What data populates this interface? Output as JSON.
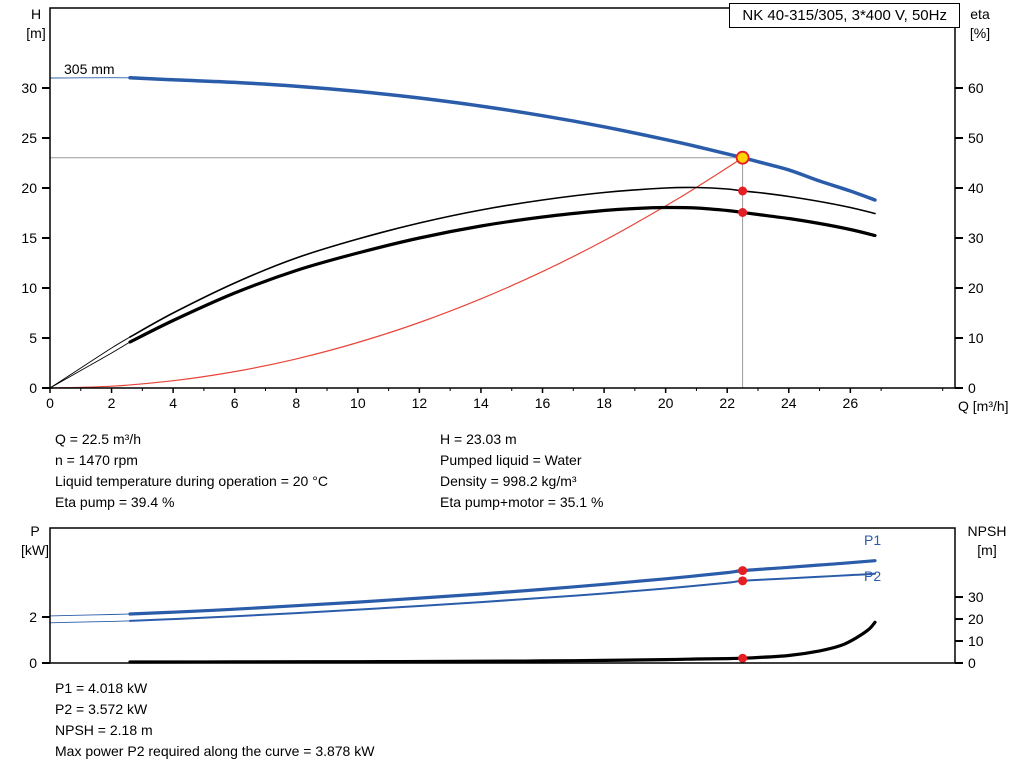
{
  "colors": {
    "curve_blue": "#2a5caa",
    "curve_red": "#e8463a",
    "marker_red": "#e31e24",
    "duty_yellow": "#ffd400",
    "guide_gray": "#9b9b9b",
    "axis_black": "#000000"
  },
  "chart_data": [
    {
      "type": "line",
      "title": "NK 40-315/305, 3*400 V, 50Hz",
      "curve_label": "305 mm",
      "x_axis": {
        "label": "Q [m³/h]",
        "ticks": [
          0,
          2,
          4,
          6,
          8,
          10,
          12,
          14,
          16,
          18,
          20,
          22,
          24,
          26
        ],
        "minor_step": 1,
        "max": 29.4
      },
      "y_left": {
        "name": "H",
        "unit": "[m]",
        "ticks": [
          0,
          5,
          10,
          15,
          20,
          25,
          30
        ],
        "max": 38
      },
      "y_right": {
        "name": "eta",
        "unit": "[%]",
        "ticks": [
          0,
          10,
          20,
          30,
          40,
          50,
          60
        ],
        "max": 76
      },
      "guides": {
        "q": 22.5,
        "v": 23.03
      },
      "series": [
        {
          "name": "system-curve",
          "axis": "left",
          "color": "#e8463a",
          "width": 1.2,
          "points": [
            [
              0,
              0
            ],
            [
              2,
              0.18
            ],
            [
              4,
              0.73
            ],
            [
              6,
              1.64
            ],
            [
              8,
              2.91
            ],
            [
              10,
              4.55
            ],
            [
              12,
              6.55
            ],
            [
              14,
              8.92
            ],
            [
              16,
              11.64
            ],
            [
              18,
              14.74
            ],
            [
              20,
              18.2
            ],
            [
              21,
              20.06
            ],
            [
              22,
              22.02
            ],
            [
              22.5,
              23.03
            ]
          ]
        },
        {
          "name": "eta-pump",
          "axis": "right",
          "color": "#000000",
          "width": 1.6,
          "thin_until": 2.6,
          "points": [
            [
              0,
              0
            ],
            [
              1,
              4
            ],
            [
              2,
              8
            ],
            [
              2.6,
              10.2
            ],
            [
              4,
              15
            ],
            [
              6,
              21
            ],
            [
              8,
              26
            ],
            [
              10,
              29.8
            ],
            [
              12,
              33
            ],
            [
              14,
              35.6
            ],
            [
              16,
              37.6
            ],
            [
              18,
              39.1
            ],
            [
              20,
              40.0
            ],
            [
              21,
              40.1
            ],
            [
              22,
              39.8
            ],
            [
              22.5,
              39.4
            ],
            [
              23,
              39.1
            ],
            [
              24,
              38.3
            ],
            [
              25,
              37.3
            ],
            [
              26,
              36.1
            ],
            [
              26.8,
              34.9
            ]
          ]
        },
        {
          "name": "eta-pump-motor",
          "axis": "right",
          "color": "#000000",
          "width": 3.2,
          "thin_until": 2.6,
          "points": [
            [
              0,
              0
            ],
            [
              1,
              3.5
            ],
            [
              2,
              7
            ],
            [
              2.6,
              9.2
            ],
            [
              4,
              13.5
            ],
            [
              6,
              19
            ],
            [
              8,
              23.5
            ],
            [
              10,
              27
            ],
            [
              12,
              30
            ],
            [
              14,
              32.4
            ],
            [
              16,
              34.2
            ],
            [
              18,
              35.5
            ],
            [
              19,
              35.9
            ],
            [
              20,
              36.1
            ],
            [
              21,
              36.0
            ],
            [
              22,
              35.5
            ],
            [
              22.5,
              35.1
            ],
            [
              23,
              34.7
            ],
            [
              24,
              33.9
            ],
            [
              25,
              32.9
            ],
            [
              26,
              31.7
            ],
            [
              26.8,
              30.5
            ]
          ]
        },
        {
          "name": "head-305mm",
          "axis": "left",
          "color": "#2a5caa",
          "width": 3.5,
          "thin_until": 2.6,
          "points": [
            [
              0,
              31.0
            ],
            [
              1,
              31.02
            ],
            [
              2,
              31.03
            ],
            [
              2.6,
              31.02
            ],
            [
              4,
              30.82
            ],
            [
              6,
              30.56
            ],
            [
              8,
              30.18
            ],
            [
              10,
              29.66
            ],
            [
              12,
              29.0
            ],
            [
              14,
              28.19
            ],
            [
              16,
              27.23
            ],
            [
              18,
              26.12
            ],
            [
              20,
              24.84
            ],
            [
              21,
              24.15
            ],
            [
              22,
              23.41
            ],
            [
              22.5,
              23.03
            ],
            [
              23,
              22.63
            ],
            [
              24,
              21.81
            ],
            [
              25,
              20.7
            ],
            [
              26,
              19.7
            ],
            [
              26.8,
              18.8
            ]
          ]
        }
      ],
      "markers": [
        {
          "q": 22.5,
          "v": 39.4,
          "axis": "right",
          "type": "dot"
        },
        {
          "q": 22.5,
          "v": 35.1,
          "axis": "right",
          "type": "dot"
        },
        {
          "q": 22.5,
          "v": 23.03,
          "axis": "left",
          "type": "duty"
        }
      ]
    },
    {
      "type": "line",
      "title": "",
      "series_labels": [
        "P1",
        "P2"
      ],
      "x_axis": {
        "label": "",
        "ticks": [],
        "minor_step": 0,
        "max": 29.4
      },
      "y_left": {
        "name": "P",
        "unit": "[kW]",
        "ticks": [
          0,
          2
        ],
        "max": 5.87
      },
      "y_right": {
        "name": "NPSH",
        "unit": "[m]",
        "ticks": [
          0,
          10,
          20,
          30
        ],
        "max": 61.4
      },
      "series": [
        {
          "name": "p1-power",
          "axis": "left",
          "color": "#2a5caa",
          "width": 3.2,
          "thin_until": 2.6,
          "points": [
            [
              0,
              2.05
            ],
            [
              1,
              2.08
            ],
            [
              2,
              2.11
            ],
            [
              2.6,
              2.13
            ],
            [
              4,
              2.21
            ],
            [
              6,
              2.34
            ],
            [
              8,
              2.49
            ],
            [
              10,
              2.65
            ],
            [
              12,
              2.82
            ],
            [
              14,
              3.0
            ],
            [
              16,
              3.2
            ],
            [
              18,
              3.42
            ],
            [
              20,
              3.66
            ],
            [
              22,
              3.93
            ],
            [
              22.5,
              4.018
            ],
            [
              24,
              4.16
            ],
            [
              25,
              4.26
            ],
            [
              26,
              4.36
            ],
            [
              26.8,
              4.45
            ]
          ]
        },
        {
          "name": "p2-power",
          "axis": "left",
          "color": "#2a5caa",
          "width": 2.0,
          "thin_until": 2.6,
          "points": [
            [
              0,
              1.75
            ],
            [
              1,
              1.78
            ],
            [
              2,
              1.81
            ],
            [
              2.6,
              1.83
            ],
            [
              4,
              1.91
            ],
            [
              6,
              2.03
            ],
            [
              8,
              2.17
            ],
            [
              10,
              2.32
            ],
            [
              12,
              2.48
            ],
            [
              14,
              2.65
            ],
            [
              16,
              2.83
            ],
            [
              18,
              3.02
            ],
            [
              20,
              3.24
            ],
            [
              22,
              3.49
            ],
            [
              22.5,
              3.572
            ],
            [
              24,
              3.68
            ],
            [
              25,
              3.75
            ],
            [
              26,
              3.82
            ],
            [
              26.8,
              3.878
            ]
          ]
        },
        {
          "name": "npsh",
          "axis": "right",
          "color": "#000000",
          "width": 3.2,
          "points": [
            [
              2.6,
              0.45
            ],
            [
              6,
              0.5
            ],
            [
              10,
              0.6
            ],
            [
              14,
              0.8
            ],
            [
              16,
              0.95
            ],
            [
              18,
              1.2
            ],
            [
              20,
              1.55
            ],
            [
              21,
              1.8
            ],
            [
              22,
              2.0
            ],
            [
              22.5,
              2.18
            ],
            [
              23,
              2.5
            ],
            [
              24,
              3.4
            ],
            [
              25,
              5.5
            ],
            [
              25.7,
              8.0
            ],
            [
              26.2,
              11.5
            ],
            [
              26.6,
              15.3
            ],
            [
              26.8,
              18.5
            ]
          ]
        }
      ],
      "markers": [
        {
          "q": 22.5,
          "v": 4.018,
          "axis": "left",
          "type": "dot"
        },
        {
          "q": 22.5,
          "v": 3.572,
          "axis": "left",
          "type": "dot"
        },
        {
          "q": 22.5,
          "v": 2.18,
          "axis": "right",
          "type": "dot"
        }
      ]
    }
  ],
  "info_block": {
    "left": [
      "Q = 22.5 m³/h",
      "n = 1470 rpm",
      "Liquid temperature during operation = 20 °C",
      "Eta pump = 39.4 %"
    ],
    "right": [
      "H = 23.03 m",
      "Pumped liquid = Water",
      "Density = 998.2 kg/m³",
      "Eta pump+motor = 35.1 %"
    ]
  },
  "result_block": [
    "P1 = 4.018 kW",
    "P2 = 3.572 kW",
    "NPSH = 2.18 m",
    "Max power P2 required along the curve = 3.878 kW"
  ]
}
